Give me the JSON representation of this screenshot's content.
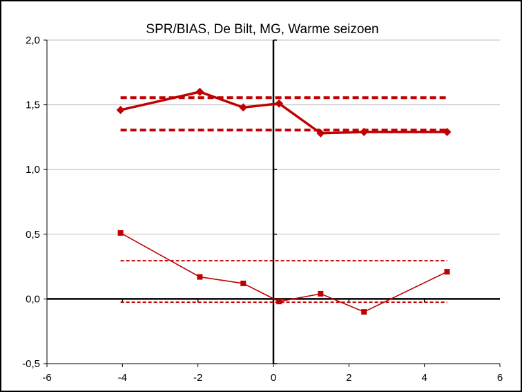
{
  "chart_data": {
    "type": "line",
    "title": "SPR/BIAS, De Bilt, MG, Warme seizoen",
    "xlabel": "",
    "ylabel": "",
    "xlim": [
      -6,
      6
    ],
    "ylim": [
      -0.5,
      2.0
    ],
    "xticks": [
      -6,
      -4,
      -2,
      0,
      2,
      4,
      6
    ],
    "yticks": [
      -0.5,
      0.0,
      0.5,
      1.0,
      1.5,
      2.0
    ],
    "xtick_labels": [
      "-6",
      "-4",
      "-2",
      "0",
      "2",
      "4",
      "6"
    ],
    "ytick_labels": [
      "-0,5",
      "0,0",
      "0,5",
      "1,0",
      "1,5",
      "2,0"
    ],
    "grid": "horizontal",
    "legend": "none",
    "series": [
      {
        "marker": "diamond",
        "style": "thick",
        "color": "#c00000",
        "x": [
          -4.05,
          -1.95,
          -0.8,
          0.15,
          1.25,
          2.4,
          4.6
        ],
        "y": [
          1.46,
          1.6,
          1.48,
          1.51,
          1.28,
          1.29,
          1.29
        ]
      },
      {
        "marker": "square",
        "style": "thin",
        "color": "#c00000",
        "x": [
          -4.05,
          -1.95,
          -0.8,
          0.15,
          1.25,
          2.4,
          4.6
        ],
        "y": [
          0.51,
          0.17,
          0.12,
          -0.02,
          0.04,
          -0.1,
          0.21
        ]
      }
    ],
    "reference_lines": [
      {
        "style": "thick-dashed",
        "color": "#c00000",
        "x": [
          -4.05,
          4.6
        ],
        "y": 1.555
      },
      {
        "style": "thick-dashed",
        "color": "#c00000",
        "x": [
          -4.05,
          4.6
        ],
        "y": 1.305
      },
      {
        "style": "thin-dashed",
        "color": "#c00000",
        "x": [
          -4.05,
          4.6
        ],
        "y": 0.295
      },
      {
        "style": "thin-dashed",
        "color": "#c00000",
        "x": [
          -4.05,
          4.6
        ],
        "y": -0.025
      }
    ]
  }
}
